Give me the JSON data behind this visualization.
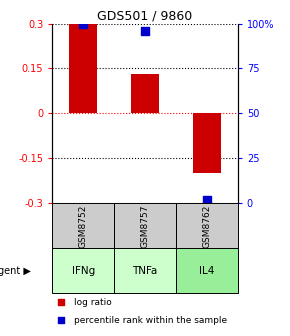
{
  "title": "GDS501 / 9860",
  "samples": [
    "GSM8752",
    "GSM8757",
    "GSM8762"
  ],
  "agents": [
    "IFNg",
    "TNFa",
    "IL4"
  ],
  "log_ratios": [
    0.3,
    0.13,
    -0.2
  ],
  "percentile_ranks": [
    99.5,
    96.0,
    2.0
  ],
  "ylim_left": [
    -0.3,
    0.3
  ],
  "ylim_right": [
    0,
    100
  ],
  "yticks_left": [
    -0.3,
    -0.15,
    0,
    0.15,
    0.3
  ],
  "yticks_right": [
    0,
    25,
    50,
    75,
    100
  ],
  "ytick_labels_left": [
    "-0.3",
    "-0.15",
    "0",
    "0.15",
    "0.3"
  ],
  "ytick_labels_right": [
    "0",
    "25",
    "50",
    "75",
    "100%"
  ],
  "bar_color": "#cc0000",
  "square_color": "#0000cc",
  "agent_colors": [
    "#aaffaa",
    "#aaffaa",
    "#aaffaa"
  ],
  "sample_bg_color": "#cccccc",
  "agent_label": "agent",
  "legend_log_ratio": "log ratio",
  "legend_percentile": "percentile rank within the sample"
}
